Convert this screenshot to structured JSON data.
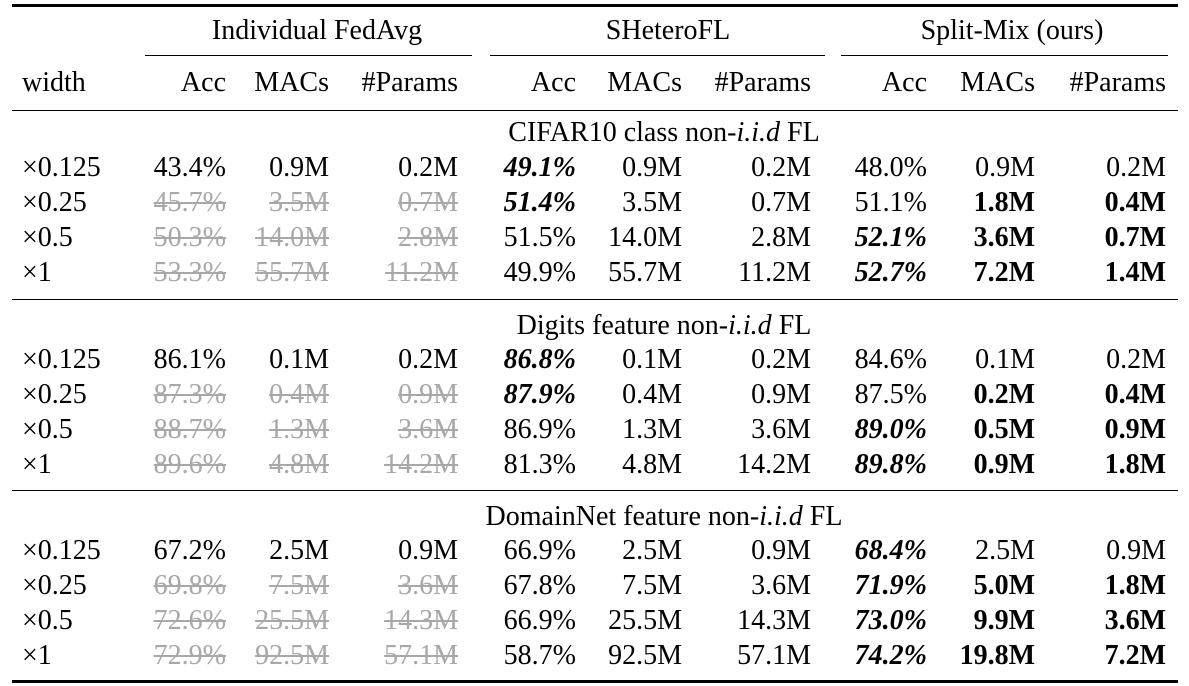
{
  "header": {
    "groups": [
      "Individual FedAvg",
      "SHeteroFL",
      "Split-Mix (ours)"
    ],
    "width_label": "width",
    "columns": [
      "Acc",
      "MACs",
      "#Params",
      "Acc",
      "MACs",
      "#Params",
      "Acc",
      "MACs",
      "#Params"
    ]
  },
  "sections": [
    {
      "title_prefix": "CIFAR10 class non-",
      "title_ital": "i.i.d",
      "title_suffix": " FL",
      "rows": [
        {
          "width": "×0.125",
          "cells": [
            "43.4%",
            "0.9M",
            "0.2M",
            "49.1%",
            "0.9M",
            "0.2M",
            "48.0%",
            "0.9M",
            "0.2M"
          ]
        },
        {
          "width": "×0.25",
          "cells": [
            "45.7%",
            "3.5M",
            "0.7M",
            "51.4%",
            "3.5M",
            "0.7M",
            "51.1%",
            "1.8M",
            "0.4M"
          ]
        },
        {
          "width": "×0.5",
          "cells": [
            "50.3%",
            "14.0M",
            "2.8M",
            "51.5%",
            "14.0M",
            "2.8M",
            "52.1%",
            "3.6M",
            "0.7M"
          ]
        },
        {
          "width": "×1",
          "cells": [
            "53.3%",
            "55.7M",
            "11.2M",
            "49.9%",
            "55.7M",
            "11.2M",
            "52.7%",
            "7.2M",
            "1.4M"
          ]
        }
      ]
    },
    {
      "title_prefix": "Digits feature non-",
      "title_ital": "i.i.d",
      "title_suffix": " FL",
      "rows": [
        {
          "width": "×0.125",
          "cells": [
            "86.1%",
            "0.1M",
            "0.2M",
            "86.8%",
            "0.1M",
            "0.2M",
            "84.6%",
            "0.1M",
            "0.2M"
          ]
        },
        {
          "width": "×0.25",
          "cells": [
            "87.3%",
            "0.4M",
            "0.9M",
            "87.9%",
            "0.4M",
            "0.9M",
            "87.5%",
            "0.2M",
            "0.4M"
          ]
        },
        {
          "width": "×0.5",
          "cells": [
            "88.7%",
            "1.3M",
            "3.6M",
            "86.9%",
            "1.3M",
            "3.6M",
            "89.0%",
            "0.5M",
            "0.9M"
          ]
        },
        {
          "width": "×1",
          "cells": [
            "89.6%",
            "4.8M",
            "14.2M",
            "81.3%",
            "4.8M",
            "14.2M",
            "89.8%",
            "0.9M",
            "1.8M"
          ]
        }
      ]
    },
    {
      "title_prefix": "DomainNet feature non-",
      "title_ital": "i.i.d",
      "title_suffix": " FL",
      "rows": [
        {
          "width": "×0.125",
          "cells": [
            "67.2%",
            "2.5M",
            "0.9M",
            "66.9%",
            "2.5M",
            "0.9M",
            "68.4%",
            "2.5M",
            "0.9M"
          ]
        },
        {
          "width": "×0.25",
          "cells": [
            "69.8%",
            "7.5M",
            "3.6M",
            "67.8%",
            "7.5M",
            "3.6M",
            "71.9%",
            "5.0M",
            "1.8M"
          ]
        },
        {
          "width": "×0.5",
          "cells": [
            "72.6%",
            "25.5M",
            "14.3M",
            "66.9%",
            "25.5M",
            "14.3M",
            "73.0%",
            "9.9M",
            "3.6M"
          ]
        },
        {
          "width": "×1",
          "cells": [
            "72.9%",
            "92.5M",
            "57.1M",
            "58.7%",
            "92.5M",
            "57.1M",
            "74.2%",
            "19.8M",
            "7.2M"
          ]
        }
      ]
    }
  ]
}
